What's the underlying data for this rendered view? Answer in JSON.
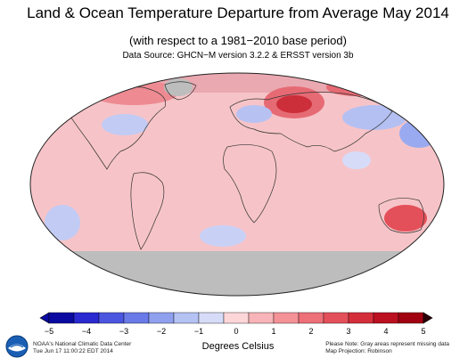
{
  "header": {
    "title": "Land & Ocean Temperature Departure from Average May 2014",
    "subtitle": "(with respect to a 1981−2010 base period)",
    "source": "Data Source: GHCN−M version 3.2.2 & ERSST version 3b"
  },
  "legend": {
    "units": "Degrees Celsius",
    "tick_labels": [
      "−5",
      "−4",
      "−3",
      "−2",
      "−1",
      "0",
      "1",
      "2",
      "3",
      "4",
      "5"
    ],
    "colors": [
      "#0a0aa0",
      "#2a2ad0",
      "#4a55e0",
      "#6a7ae8",
      "#8ea0ee",
      "#b4c2f4",
      "#d6dcf8",
      "#fcd6d8",
      "#f8b4b8",
      "#f49298",
      "#ee7078",
      "#e4505a",
      "#d42e3a",
      "#bb1020",
      "#a00010"
    ]
  },
  "map": {
    "missing_color": "#bdbdbd",
    "ocean_color": "#f6c4c8"
  },
  "footer": {
    "org_line1": "NOAA's National Climatic Data Center",
    "org_line2": "Tue Jun 17 11:00:22 EDT 2014",
    "note_line1": "Please Note: Gray areas represent missing data",
    "note_line2": "Map Projection: Robinson"
  }
}
